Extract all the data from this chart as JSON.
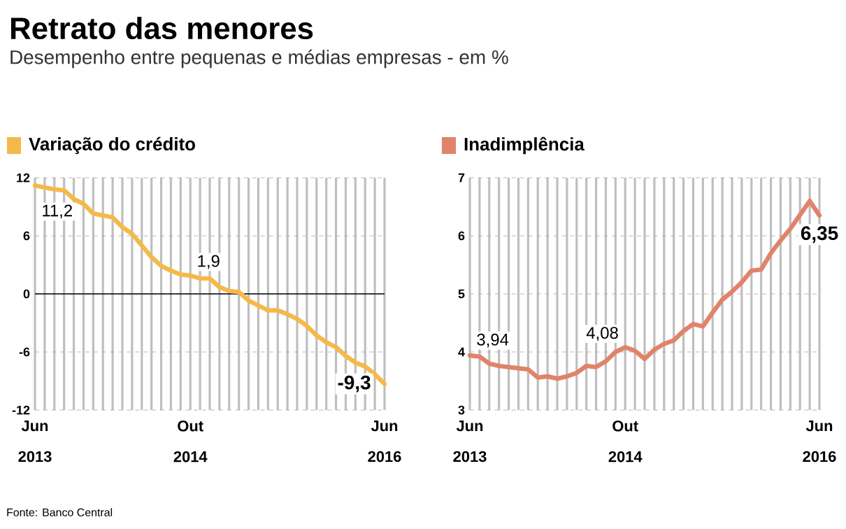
{
  "chart_data": [
    {
      "type": "line",
      "title": "Retrato das menores",
      "subtitle": "Desempenho entre pequenas e médias empresas - em %",
      "categories": [
        "Jun 2013",
        null,
        null,
        null,
        null,
        null,
        null,
        null,
        null,
        null,
        null,
        null,
        null,
        null,
        null,
        null,
        "Out 2014",
        null,
        null,
        null,
        null,
        null,
        null,
        null,
        null,
        null,
        null,
        null,
        null,
        null,
        null,
        null,
        null,
        null,
        null,
        null,
        "Jun 2016"
      ],
      "series": [
        {
          "name": "Variação do crédito",
          "color": "#f5b94a",
          "values": [
            11.2,
            11.0,
            10.8,
            10.7,
            9.8,
            9.3,
            8.3,
            8.1,
            7.9,
            6.9,
            6.2,
            5.0,
            3.8,
            2.9,
            2.4,
            2.0,
            1.9,
            1.6,
            1.6,
            0.7,
            0.3,
            0.2,
            -0.7,
            -1.2,
            -1.7,
            -1.7,
            -2.1,
            -2.6,
            -3.3,
            -4.3,
            -5.0,
            -5.5,
            -6.4,
            -7.1,
            -7.5,
            -8.3,
            -9.3
          ],
          "value_labels": [
            "11,2",
            null,
            null,
            null,
            null,
            null,
            null,
            null,
            null,
            null,
            null,
            null,
            null,
            null,
            null,
            null,
            "1,9",
            null,
            null,
            null,
            null,
            null,
            null,
            null,
            null,
            null,
            null,
            null,
            null,
            null,
            null,
            null,
            null,
            null,
            null,
            null,
            "-9,3"
          ]
        }
      ],
      "ylim": [
        -12,
        12
      ],
      "yticks": [
        -12,
        -6,
        0,
        6,
        12
      ],
      "grid": true,
      "legend": "top left",
      "ref_lines": [
        {
          "axis": "y",
          "value": 0,
          "color": "#000000"
        }
      ],
      "annotations": [
        "Fonte: Banco Central"
      ]
    },
    {
      "type": "line",
      "categories": [
        "Jun 2013",
        null,
        null,
        null,
        null,
        null,
        null,
        null,
        null,
        null,
        null,
        null,
        null,
        null,
        null,
        null,
        "Out 2014",
        null,
        null,
        null,
        null,
        null,
        null,
        null,
        null,
        null,
        null,
        null,
        null,
        null,
        null,
        null,
        null,
        null,
        null,
        null,
        "Jun 2016"
      ],
      "series": [
        {
          "name": "Inadimplência",
          "color": "#e0836a",
          "values": [
            3.94,
            3.92,
            3.8,
            3.76,
            3.74,
            3.72,
            3.7,
            3.56,
            3.58,
            3.54,
            3.58,
            3.64,
            3.76,
            3.74,
            3.84,
            4.0,
            4.08,
            4.02,
            3.88,
            4.04,
            4.14,
            4.2,
            4.36,
            4.48,
            4.44,
            4.68,
            4.9,
            5.04,
            5.2,
            5.4,
            5.42,
            5.7,
            5.92,
            6.12,
            6.36,
            6.6,
            6.35
          ],
          "value_labels": [
            "3,94",
            null,
            null,
            null,
            null,
            null,
            null,
            null,
            null,
            null,
            null,
            null,
            null,
            null,
            null,
            null,
            "4,08",
            null,
            null,
            null,
            null,
            null,
            null,
            null,
            null,
            null,
            null,
            null,
            null,
            null,
            null,
            null,
            null,
            null,
            null,
            null,
            "6,35"
          ]
        }
      ],
      "ylim": [
        3,
        7
      ],
      "yticks": [
        3,
        4,
        5,
        6,
        7
      ],
      "grid": true,
      "legend": "top left"
    }
  ]
}
